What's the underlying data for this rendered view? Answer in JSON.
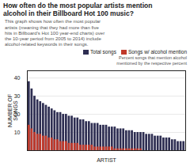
{
  "chart_data": {
    "type": "bar",
    "title": "How often do the most popular artists mention\nalcohol in their Billboard Hot 100 music?",
    "xlabel": "ARTIST",
    "ylabel": "NUMBER OF\nSONGS",
    "categories": [
      null,
      null,
      null,
      null,
      null,
      null,
      null,
      null,
      null,
      null,
      null,
      null,
      null,
      null,
      null,
      null,
      null,
      null,
      null,
      null,
      null,
      null,
      null,
      null,
      null,
      null,
      null,
      null,
      null,
      null,
      null,
      null,
      null,
      null,
      null,
      null,
      null,
      null,
      null,
      null,
      null,
      null,
      null,
      null,
      null,
      null,
      null,
      null,
      null,
      null,
      null,
      null,
      null,
      null,
      null
    ],
    "series": [
      {
        "name": "Total songs",
        "color": "#2e2e52",
        "values": [
          38,
          34,
          30,
          28,
          27,
          26,
          25,
          24,
          23,
          22,
          21,
          21,
          20,
          20,
          19,
          19,
          18,
          18,
          17,
          17,
          16,
          16,
          15,
          15,
          15,
          14,
          14,
          14,
          13,
          13,
          13,
          12,
          12,
          12,
          11,
          11,
          11,
          10,
          10,
          10,
          10,
          9,
          9,
          9,
          8,
          8,
          8,
          7,
          7,
          7,
          6,
          6,
          5,
          5,
          5
        ]
      },
      {
        "name": "Songs w/ alcohol mention",
        "color": "#c0392b",
        "values": [
          14,
          12,
          10,
          9,
          9,
          8,
          8,
          7,
          7,
          6,
          6,
          5,
          5,
          5,
          4,
          4,
          4,
          4,
          3,
          3,
          3,
          3,
          3,
          2,
          2,
          2,
          2,
          2,
          2,
          2,
          1,
          1,
          1,
          1,
          1,
          1,
          1,
          1,
          1,
          1,
          0,
          0,
          0,
          0,
          0,
          0,
          0,
          0,
          0,
          0,
          0,
          0,
          0,
          0,
          0
        ]
      }
    ],
    "stacked": false,
    "ylim": [
      0,
      44
    ],
    "yticks": [
      10,
      20,
      30,
      40
    ],
    "grid": true,
    "legend": "upper right",
    "tick_labels": "y",
    "annotations": [
      "This graph shows how often the most popular\nartists (meaning that they had more than five\nhits in Billboard's Hot 100 year-end charts) over\nthe 10-year period from 2005 to 2014) include\nalcohol-related keywords in their songs.",
      "Percent songs that mention alcohol\nmentioned by the respective percent"
    ]
  }
}
